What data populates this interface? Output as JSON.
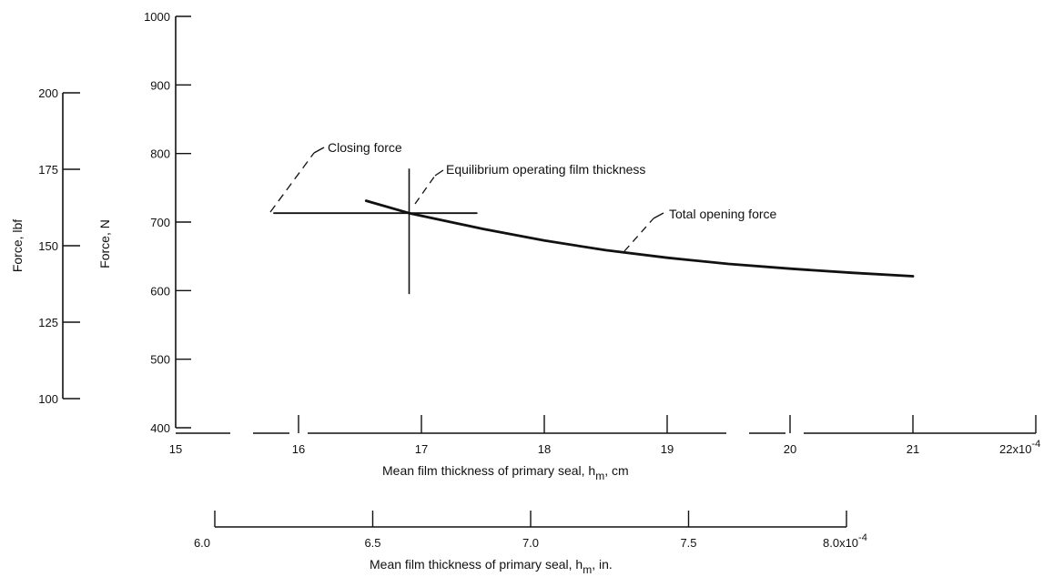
{
  "chart_data": {
    "type": "line",
    "title": "",
    "x_axis_cm": {
      "label": "Mean film thickness of primary seal, h",
      "sub": "m",
      "suffix": ", cm",
      "min": 15,
      "max": 22,
      "ticks": [
        15,
        16,
        17,
        18,
        19,
        20,
        21,
        22
      ],
      "tick_labels": [
        "15",
        "16",
        "17",
        "18",
        "19",
        "20",
        "21",
        "22x10"
      ],
      "exponent": "-4"
    },
    "x_axis_in": {
      "label": "Mean film thickness of primary seal, h",
      "sub": "m",
      "suffix": ", in.",
      "min": 6.0,
      "max": 8.0,
      "ticks": [
        6.0,
        6.5,
        7.0,
        7.5,
        8.0
      ],
      "tick_labels": [
        "6.0",
        "6.5",
        "7.0",
        "7.5",
        "8.0x10"
      ],
      "exponent": "-4"
    },
    "y_axis_N": {
      "label": "Force, N",
      "min": 400,
      "max": 1000,
      "ticks": [
        400,
        500,
        600,
        700,
        800,
        900,
        1000
      ],
      "tick_labels": [
        "400",
        "500",
        "600",
        "700",
        "800",
        "900",
        "1000"
      ]
    },
    "y_axis_lbf": {
      "label": "Force, lbf",
      "min": 100,
      "max": 200,
      "ticks": [
        100,
        125,
        150,
        175,
        200
      ],
      "tick_labels": [
        "100",
        "125",
        "150",
        "175",
        "200"
      ]
    },
    "series": [
      {
        "name": "Closing force",
        "x": [
          15.8,
          17.45
        ],
        "y": [
          713,
          713
        ]
      },
      {
        "name": "Total opening force",
        "x": [
          16.55,
          16.9,
          17.5,
          18.0,
          18.5,
          19.0,
          19.5,
          20.0,
          20.5,
          21.0
        ],
        "y": [
          731,
          713,
          690,
          673,
          659,
          648,
          639,
          632,
          626,
          621
        ]
      }
    ],
    "equilibrium": {
      "label": "Equilibrium operating film thickness",
      "x": 16.9,
      "y_range": [
        595,
        778
      ]
    },
    "annotations": {
      "closing_force": "Closing force",
      "equilibrium": "Equilibrium operating film thickness",
      "total_opening_force": "Total opening force"
    }
  }
}
